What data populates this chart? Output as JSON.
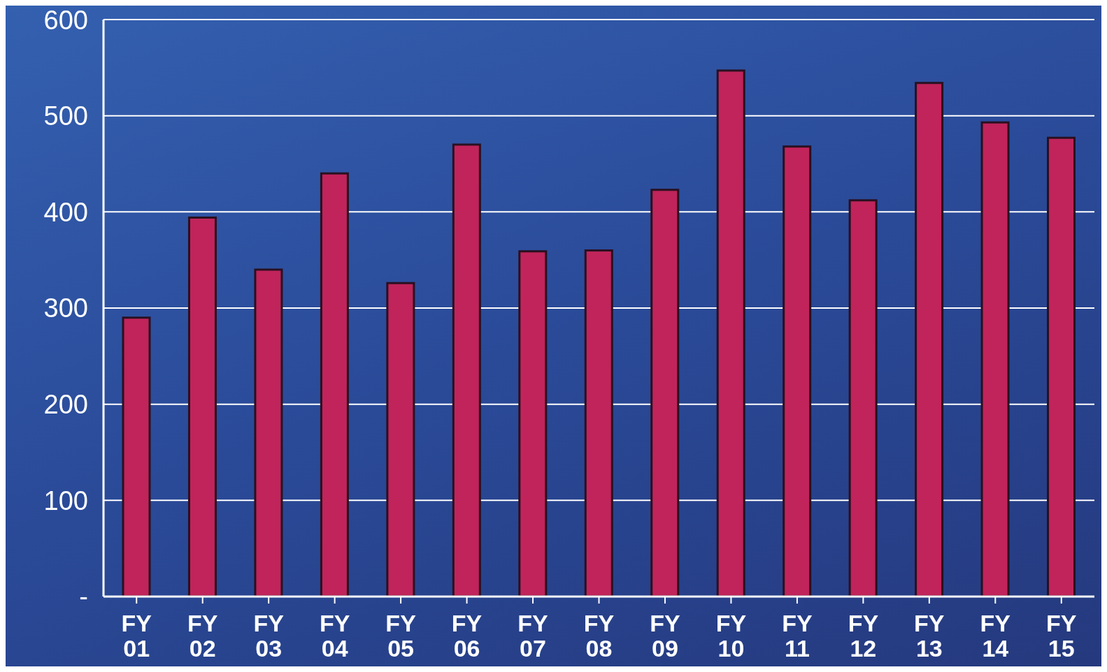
{
  "chart_data": {
    "type": "bar",
    "categories": [
      "FY 01",
      "FY 02",
      "FY 03",
      "FY 04",
      "FY 05",
      "FY 06",
      "FY 07",
      "FY 08",
      "FY 09",
      "FY 10",
      "FY 11",
      "FY 12",
      "FY 13",
      "FY 14",
      "FY 15"
    ],
    "values": [
      290,
      394,
      340,
      440,
      326,
      470,
      359,
      360,
      423,
      547,
      468,
      412,
      534,
      493,
      477
    ],
    "color": "#c0245a",
    "ylim": [
      0,
      600
    ],
    "yticks": [
      {
        "value": 0,
        "label": "-"
      },
      100,
      200,
      300,
      400,
      500,
      600
    ],
    "grid": "y"
  }
}
